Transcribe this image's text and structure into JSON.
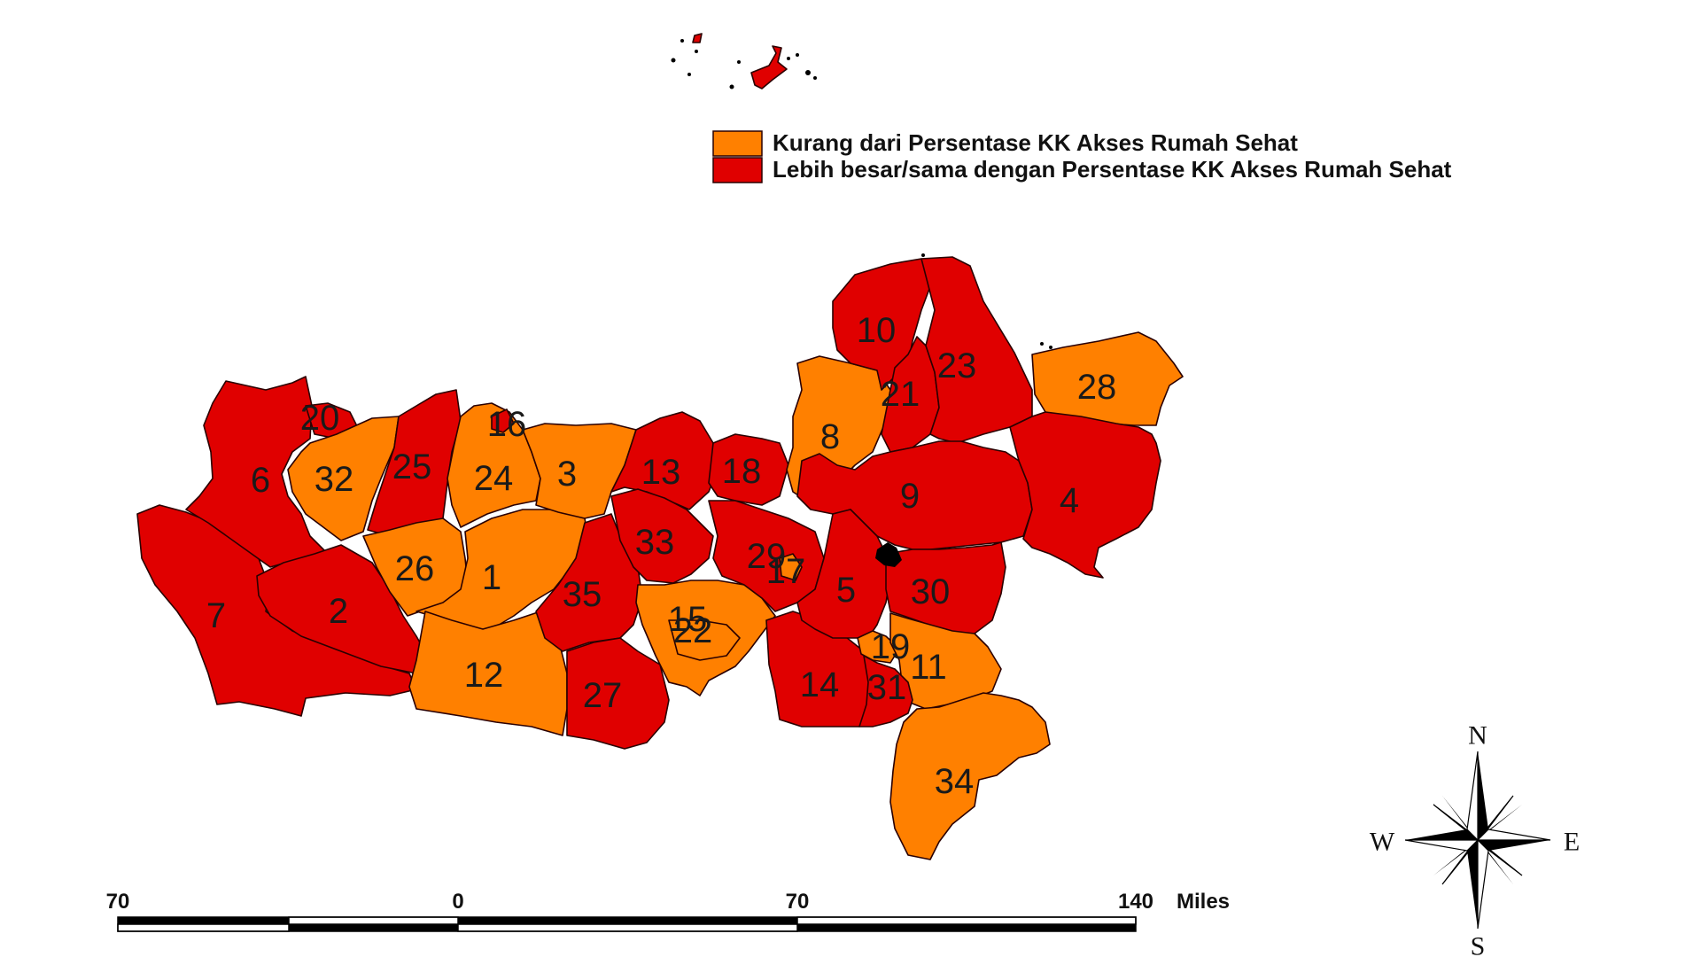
{
  "colors": {
    "below": "#ff8000",
    "above": "#e00000",
    "outline": "#2a0000",
    "water": "#000000"
  },
  "legend": {
    "items": [
      {
        "label": "Kurang dari Persentase KK Akses Rumah Sehat",
        "category": "below",
        "color": "#ff8000"
      },
      {
        "label": "Lebih besar/sama dengan Persentase KK Akses Rumah Sehat",
        "category": "above",
        "color": "#e00000"
      }
    ]
  },
  "regions": [
    {
      "id": "1",
      "category": "below"
    },
    {
      "id": "2",
      "category": "above"
    },
    {
      "id": "3",
      "category": "below"
    },
    {
      "id": "4",
      "category": "above"
    },
    {
      "id": "5",
      "category": "above"
    },
    {
      "id": "6",
      "category": "above"
    },
    {
      "id": "7",
      "category": "above"
    },
    {
      "id": "8",
      "category": "below"
    },
    {
      "id": "9",
      "category": "above"
    },
    {
      "id": "10",
      "category": "above"
    },
    {
      "id": "11",
      "category": "below"
    },
    {
      "id": "12",
      "category": "below"
    },
    {
      "id": "13",
      "category": "above"
    },
    {
      "id": "14",
      "category": "above"
    },
    {
      "id": "15",
      "category": "below"
    },
    {
      "id": "16",
      "category": "above"
    },
    {
      "id": "17",
      "category": "below"
    },
    {
      "id": "18",
      "category": "above"
    },
    {
      "id": "19",
      "category": "below"
    },
    {
      "id": "20",
      "category": "above"
    },
    {
      "id": "21",
      "category": "above"
    },
    {
      "id": "22",
      "category": "below"
    },
    {
      "id": "23",
      "category": "above"
    },
    {
      "id": "24",
      "category": "below"
    },
    {
      "id": "25",
      "category": "above"
    },
    {
      "id": "26",
      "category": "below"
    },
    {
      "id": "27",
      "category": "above"
    },
    {
      "id": "28",
      "category": "below"
    },
    {
      "id": "29",
      "category": "above"
    },
    {
      "id": "30",
      "category": "above"
    },
    {
      "id": "31",
      "category": "above"
    },
    {
      "id": "32",
      "category": "below"
    },
    {
      "id": "33",
      "category": "above"
    },
    {
      "id": "34",
      "category": "below"
    },
    {
      "id": "35",
      "category": "above"
    }
  ],
  "scale_bar": {
    "labels": [
      "70",
      "0",
      "70",
      "140"
    ],
    "unit": "Miles"
  },
  "compass": {
    "n": "N",
    "e": "E",
    "s": "S",
    "w": "W"
  }
}
